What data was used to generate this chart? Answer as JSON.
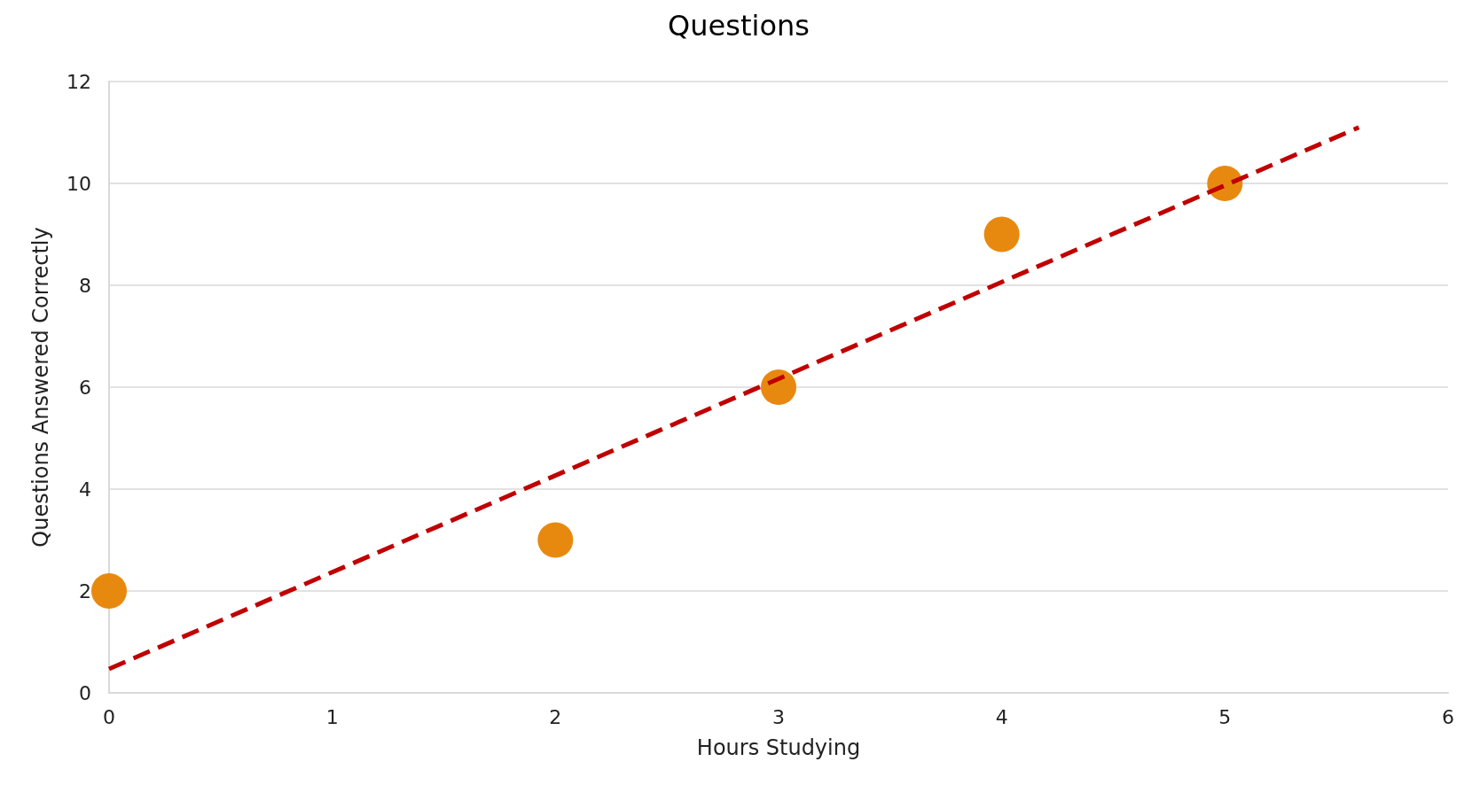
{
  "chart_data": {
    "type": "scatter",
    "title": "Questions",
    "xlabel": "Hours Studying",
    "ylabel": "Questions Answered Correctly",
    "series": [
      {
        "color": "#e8890f",
        "marker": "circle",
        "x": [
          0,
          2,
          3,
          4,
          5
        ],
        "values": [
          2,
          3,
          6,
          9,
          10
        ]
      },
      {
        "type": "line",
        "color": "#c00000",
        "marker": "none",
        "line_style": "dashed",
        "x": [
          0,
          5.6
        ],
        "values": [
          0.47,
          11.1
        ]
      }
    ],
    "xlim": [
      0,
      6
    ],
    "xticks": [
      0,
      1,
      2,
      3,
      4,
      5,
      6
    ],
    "ylim": [
      0,
      12
    ],
    "yticks": [
      0,
      2,
      4,
      6,
      8,
      10,
      12
    ],
    "grid": "y"
  }
}
